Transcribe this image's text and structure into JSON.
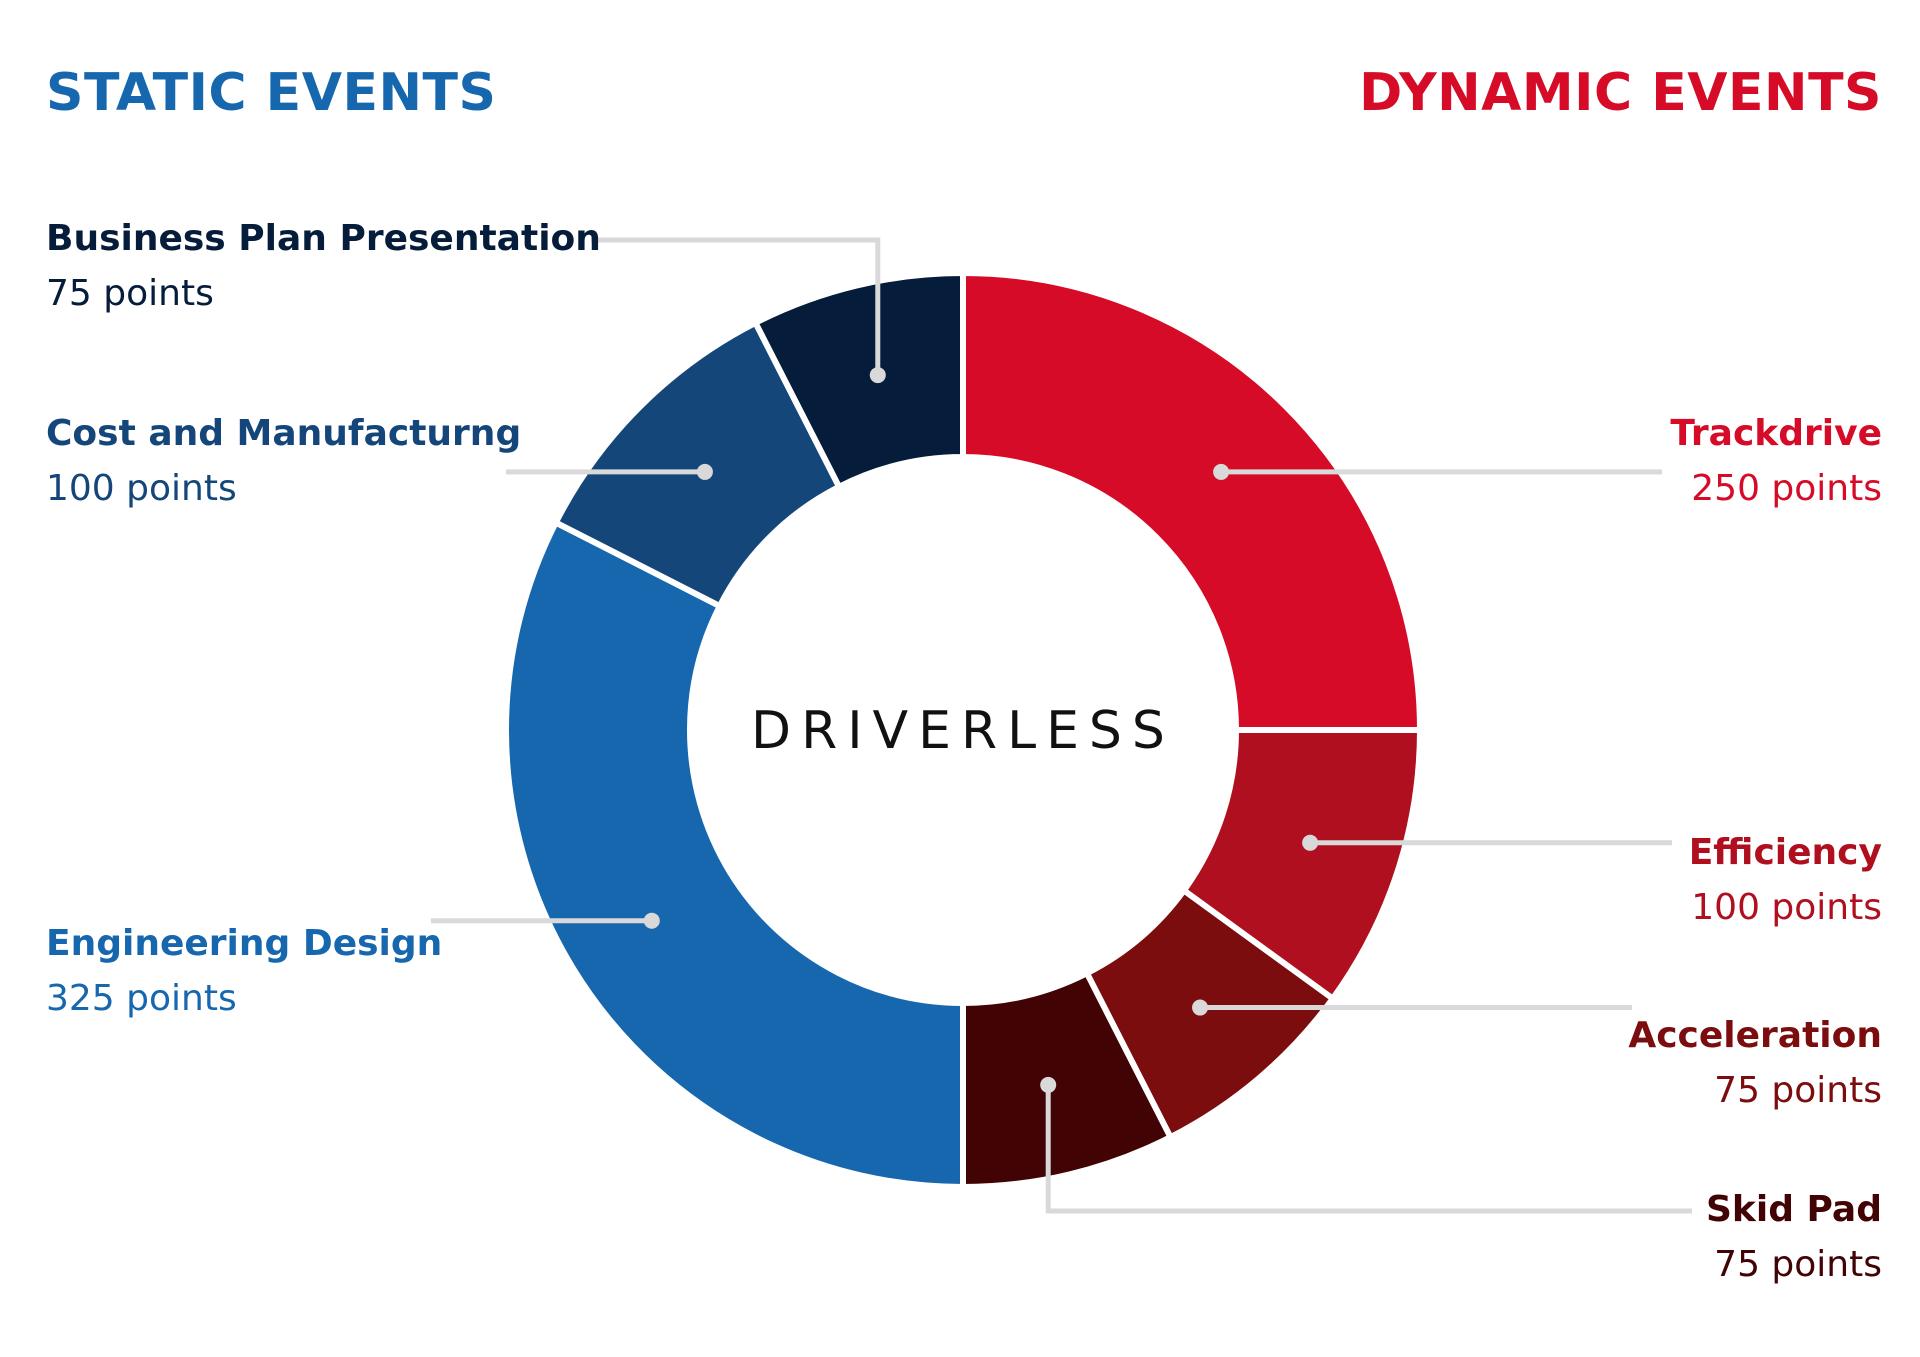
{
  "chart_data": {
    "type": "pie",
    "center_label": "DRIVERLESS",
    "group_titles": [
      {
        "text": "STATIC EVENTS",
        "color": "#1767AE"
      },
      {
        "text": "DYNAMIC EVENTS",
        "color": "#D50B27"
      }
    ],
    "slices": [
      {
        "label": "Trackdrive",
        "points_text": "250 points",
        "value": 250,
        "color": "#D50B27",
        "group": "DYNAMIC EVENTS"
      },
      {
        "label": "Efficiency",
        "points_text": "100 points",
        "value": 100,
        "color": "#AF0F1E",
        "group": "DYNAMIC EVENTS"
      },
      {
        "label": "Acceleration",
        "points_text": "75 points",
        "value": 75,
        "color": "#7B0D0F",
        "group": "DYNAMIC EVENTS"
      },
      {
        "label": "Skid Pad",
        "points_text": "75 points",
        "value": 75,
        "color": "#420304",
        "group": "DYNAMIC EVENTS"
      },
      {
        "label": "Engineering Design",
        "points_text": "325 points",
        "value": 325,
        "color": "#1767AE",
        "group": "STATIC EVENTS"
      },
      {
        "label": "Cost and Manufacturng",
        "points_text": "100 points",
        "value": 100,
        "color": "#15467A",
        "group": "STATIC EVENTS"
      },
      {
        "label": "Business Plan Presentation",
        "points_text": "75 points",
        "value": 75,
        "color": "#051D3A",
        "group": "STATIC EVENTS"
      }
    ],
    "leader_line_color": "#D9D9D9"
  }
}
